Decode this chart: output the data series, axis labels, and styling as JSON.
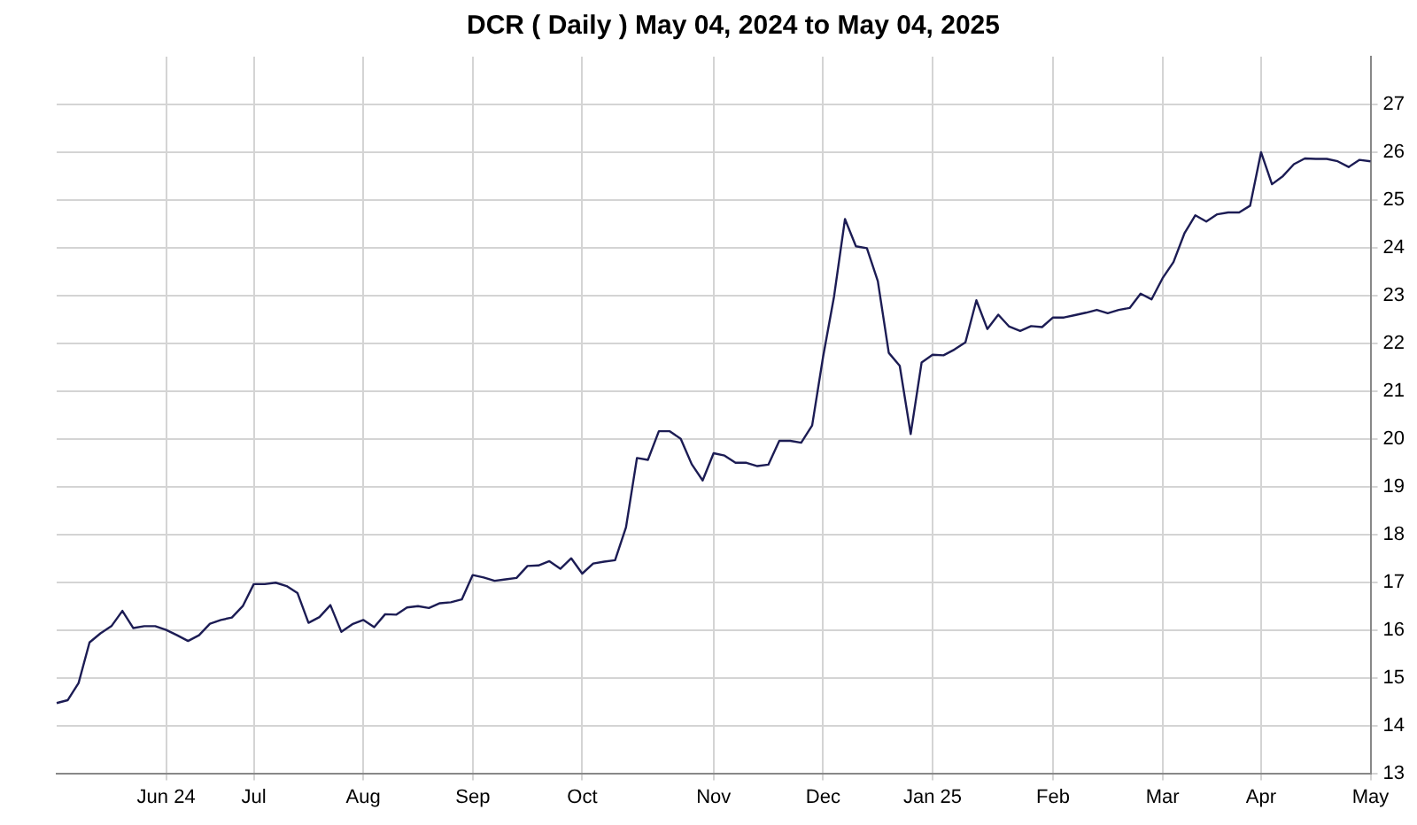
{
  "chart_data": {
    "type": "line",
    "title": "DCR ( Daily ) May 04, 2024 to May 04, 2025",
    "categories": [
      null,
      null,
      null,
      null,
      null,
      null,
      null,
      null,
      null,
      null,
      "Jun 24",
      null,
      null,
      null,
      null,
      null,
      null,
      null,
      "Jul",
      null,
      null,
      null,
      null,
      null,
      null,
      null,
      null,
      null,
      "Aug",
      null,
      null,
      null,
      null,
      null,
      null,
      null,
      null,
      null,
      "Sep",
      null,
      null,
      null,
      null,
      null,
      null,
      null,
      null,
      null,
      "Oct",
      null,
      null,
      null,
      null,
      null,
      null,
      null,
      null,
      null,
      null,
      null,
      "Nov",
      null,
      null,
      null,
      null,
      null,
      null,
      null,
      null,
      null,
      "Dec",
      null,
      null,
      null,
      null,
      null,
      null,
      null,
      null,
      null,
      "Jan 25",
      null,
      null,
      null,
      null,
      null,
      null,
      null,
      null,
      null,
      null,
      "Feb",
      null,
      null,
      null,
      null,
      null,
      null,
      null,
      null,
      null,
      "Mar",
      null,
      null,
      null,
      null,
      null,
      null,
      null,
      null,
      "Apr",
      null,
      null,
      null,
      null,
      null,
      null,
      null,
      null,
      null,
      "May"
    ],
    "series": [
      {
        "color": "#1c1c54",
        "values": [
          14.47,
          14.53,
          14.89,
          15.74,
          15.93,
          16.08,
          16.4,
          16.04,
          16.08,
          16.08,
          16.0,
          15.89,
          15.77,
          15.89,
          16.13,
          16.21,
          16.26,
          16.5,
          16.96,
          16.96,
          16.99,
          16.92,
          16.77,
          16.15,
          16.27,
          16.52,
          15.96,
          16.12,
          16.21,
          16.06,
          16.33,
          16.32,
          16.47,
          16.5,
          16.46,
          16.56,
          16.58,
          16.64,
          17.15,
          17.1,
          17.03,
          17.06,
          17.09,
          17.34,
          17.35,
          17.44,
          17.28,
          17.5,
          17.18,
          17.39,
          17.43,
          17.46,
          18.15,
          19.6,
          19.56,
          20.16,
          20.16,
          20.0,
          19.47,
          19.13,
          19.7,
          19.65,
          19.5,
          19.5,
          19.43,
          19.46,
          19.96,
          19.96,
          19.92,
          20.28,
          21.72,
          22.98,
          24.6,
          24.03,
          23.99,
          23.3,
          21.8,
          21.53,
          20.1,
          21.6,
          21.76,
          21.75,
          21.87,
          22.02,
          22.9,
          22.3,
          22.6,
          22.35,
          22.26,
          22.36,
          22.34,
          22.54,
          22.54,
          22.59,
          22.64,
          22.7,
          22.63,
          22.7,
          22.74,
          23.04,
          22.92,
          23.36,
          23.7,
          24.3,
          24.68,
          24.55,
          24.7,
          24.74,
          24.74,
          24.88,
          26.0,
          25.33,
          25.5,
          25.75,
          25.87,
          25.86,
          25.86,
          25.81,
          25.69,
          25.84,
          25.81
        ]
      }
    ],
    "ylim": [
      13,
      28
    ],
    "yticks": [
      13,
      14,
      15,
      16,
      17,
      18,
      19,
      20,
      21,
      22,
      23,
      24,
      25,
      26,
      27
    ],
    "grid": true,
    "legend": false,
    "marker": "none",
    "line_style": "solid"
  }
}
